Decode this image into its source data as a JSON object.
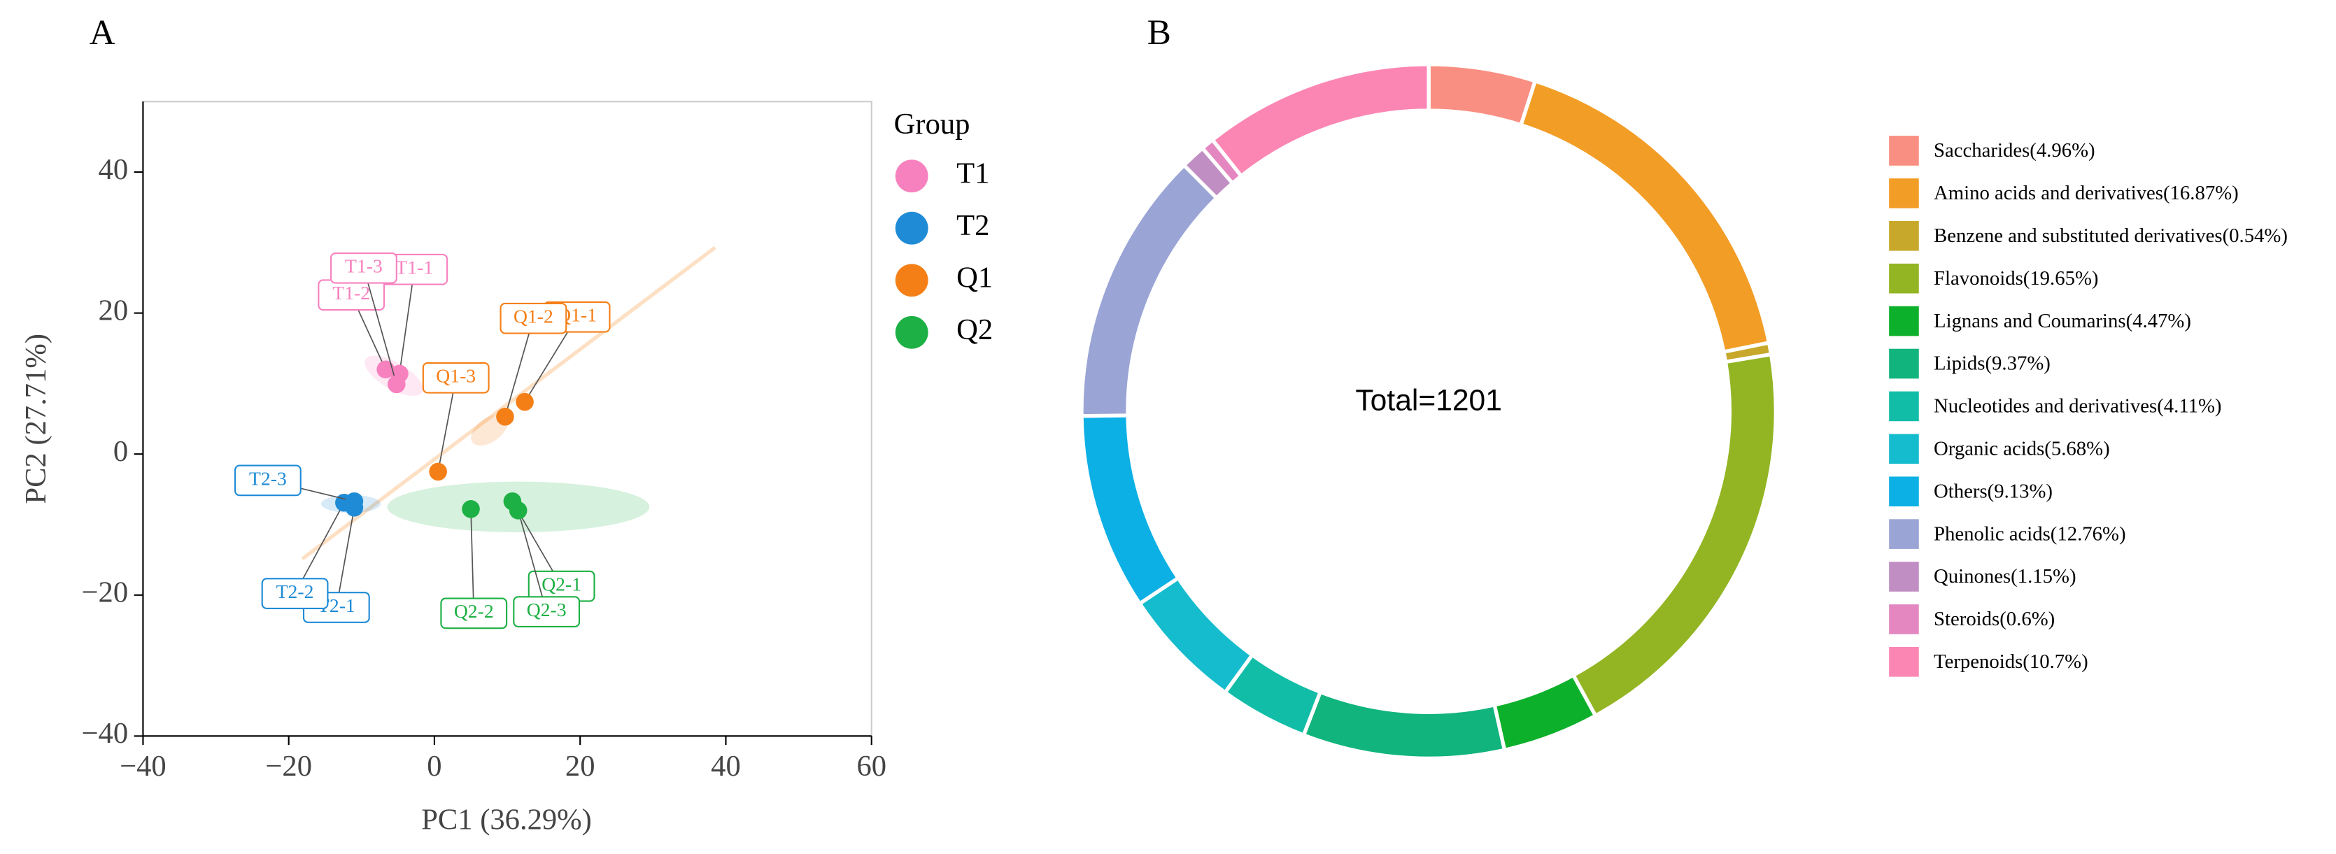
{
  "chart_data": [
    {
      "type": "scatter",
      "panel": "A",
      "xlabel": "PC1 (36.29%)",
      "ylabel": "PC2 (27.71%)",
      "xlim": [
        -40,
        60
      ],
      "ylim": [
        -40,
        50
      ],
      "xticks": [
        {
          "value": -40,
          "label": "−40"
        },
        {
          "value": -20,
          "label": "−20"
        },
        0,
        20,
        40,
        60
      ],
      "yticks": [
        {
          "value": -40,
          "label": "−40"
        },
        {
          "value": -20,
          "label": "−20"
        },
        0,
        20,
        40
      ],
      "legend_title": "Group",
      "series": [
        {
          "name": "T1",
          "color": "#f781bf",
          "x": [
            -4.8,
            -6.7,
            -5.2
          ],
          "y": [
            11.4,
            12,
            9.9
          ],
          "labels": [
            "T1-1",
            "T1-2",
            "T1-3"
          ]
        },
        {
          "name": "T2",
          "color": "#1f8bd6",
          "x": [
            -11,
            -12.4,
            -11
          ],
          "y": [
            -7.6,
            -6.9,
            -6.7
          ],
          "labels": [
            "T2-1",
            "T2-2",
            "T2-3"
          ]
        },
        {
          "name": "Q1",
          "color": "#f57f17",
          "x": [
            12.4,
            9.7,
            0.5
          ],
          "y": [
            7.4,
            5.3,
            -2.5
          ],
          "labels": [
            "Q1-1",
            "Q1-2",
            "Q1-3"
          ]
        },
        {
          "name": "Q2",
          "color": "#1db044",
          "x": [
            10.7,
            5,
            11.5
          ],
          "y": [
            -6.7,
            -7.8,
            -8
          ],
          "labels": [
            "Q2-1",
            "Q2-2",
            "Q2-3"
          ]
        }
      ]
    },
    {
      "type": "pie",
      "panel": "B",
      "center_label": "Total=1201",
      "categories": [
        "Saccharides(4.96%)",
        "Amino acids and derivatives(16.87%)",
        "Benzene and substituted derivatives(0.54%)",
        "Flavonoids(19.65%)",
        "Lignans and Coumarins(4.47%)",
        "Lipids(9.37%)",
        "Nucleotides and derivatives(4.11%)",
        "Organic acids(5.68%)",
        "Others(9.13%)",
        "Phenolic acids(12.76%)",
        "Quinones(1.15%)",
        "Steroids(0.6%)",
        "Terpenoids(10.7%)"
      ],
      "values": [
        4.96,
        16.87,
        0.54,
        19.65,
        4.47,
        9.37,
        4.11,
        5.68,
        9.13,
        12.76,
        1.15,
        0.6,
        10.7
      ],
      "colors": [
        "#f98f82",
        "#f29d26",
        "#c7a82a",
        "#93b523",
        "#0db02a",
        "#11b47c",
        "#12bda8",
        "#15bccd",
        "#0cb0e5",
        "#9aa4d5",
        "#c18ec4",
        "#e487c1",
        "#fb86b4"
      ]
    }
  ]
}
